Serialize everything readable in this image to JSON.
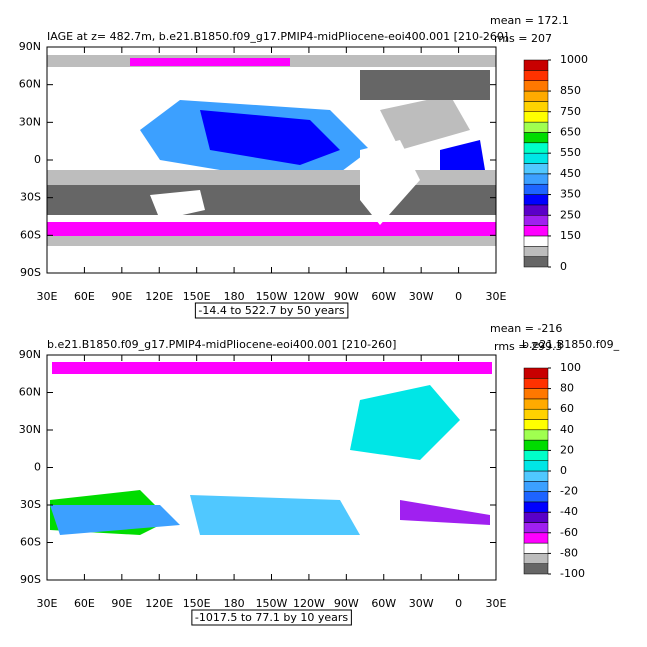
{
  "chart_data": [
    {
      "type": "map",
      "title": "IAGE at z= 482.7m, b.e21.B1850.f09_g17.PMIP4-midPliocene-eoi400.001 [210-260]",
      "mean_label": "mean = 172.1",
      "rms_label": "rms = 207",
      "range_label": "-14.4 to 522.7 by 50 years",
      "xlim": [
        30,
        390
      ],
      "xticks": [
        {
          "value": 30,
          "label": "30E"
        },
        {
          "value": 60,
          "label": "60E"
        },
        {
          "value": 90,
          "label": "90E"
        },
        {
          "value": 120,
          "label": "120E"
        },
        {
          "value": 150,
          "label": "150E"
        },
        {
          "value": 180,
          "label": "180"
        },
        {
          "value": 210,
          "label": "150W"
        },
        {
          "value": 240,
          "label": "120W"
        },
        {
          "value": 270,
          "label": "90W"
        },
        {
          "value": 300,
          "label": "60W"
        },
        {
          "value": 330,
          "label": "30W"
        },
        {
          "value": 360,
          "label": "0"
        },
        {
          "value": 390,
          "label": "30E"
        }
      ],
      "ylim": [
        -90,
        90
      ],
      "yticks": [
        {
          "value": -90,
          "label": "90S"
        },
        {
          "value": -60,
          "label": "60S"
        },
        {
          "value": -30,
          "label": "30S"
        },
        {
          "value": 0,
          "label": "0"
        },
        {
          "value": 30,
          "label": "30N"
        },
        {
          "value": 60,
          "label": "60N"
        },
        {
          "value": 90,
          "label": "90N"
        }
      ],
      "colorbar_lim": [
        0,
        1000
      ],
      "colorbar_ticks": [
        0,
        150,
        250,
        350,
        450,
        550,
        650,
        750,
        850,
        1000
      ],
      "colors": [
        "#666666",
        "#bdbdbd",
        "#ffffff",
        "#ff00ff",
        "#a020f0",
        "#5a00c8",
        "#0000ff",
        "#1e64ff",
        "#3ca0ff",
        "#50c8ff",
        "#00e6e6",
        "#00ffc8",
        "#00dc00",
        "#a0ff50",
        "#ffff00",
        "#ffd200",
        "#ffaa00",
        "#ff7800",
        "#ff3200",
        "#c80000"
      ]
    },
    {
      "type": "map",
      "title": "b.e21.B1850.f09_g17.PMIP4-midPliocene-eoi400.001 [210-260]",
      "mean_label": "mean = -216",
      "rms_label": "rms = 299.3",
      "extra_label": "b.e21.B1850.f09_",
      "range_label": "-1017.5 to 77.1 by 10 years",
      "xlim": [
        30,
        390
      ],
      "xticks": [
        {
          "value": 30,
          "label": "30E"
        },
        {
          "value": 60,
          "label": "60E"
        },
        {
          "value": 90,
          "label": "90E"
        },
        {
          "value": 120,
          "label": "120E"
        },
        {
          "value": 150,
          "label": "150E"
        },
        {
          "value": 180,
          "label": "180"
        },
        {
          "value": 210,
          "label": "150W"
        },
        {
          "value": 240,
          "label": "120W"
        },
        {
          "value": 270,
          "label": "90W"
        },
        {
          "value": 300,
          "label": "60W"
        },
        {
          "value": 330,
          "label": "30W"
        },
        {
          "value": 360,
          "label": "0"
        },
        {
          "value": 390,
          "label": "30E"
        }
      ],
      "ylim": [
        -90,
        90
      ],
      "yticks": [
        {
          "value": -90,
          "label": "90S"
        },
        {
          "value": -60,
          "label": "60S"
        },
        {
          "value": -30,
          "label": "30S"
        },
        {
          "value": 0,
          "label": "0"
        },
        {
          "value": 30,
          "label": "30N"
        },
        {
          "value": 60,
          "label": "60N"
        },
        {
          "value": 90,
          "label": "90N"
        }
      ],
      "colorbar_lim": [
        -100,
        100
      ],
      "colorbar_ticks": [
        -100,
        -80,
        -60,
        -40,
        -20,
        0,
        20,
        40,
        60,
        80,
        100
      ],
      "colors": [
        "#666666",
        "#bdbdbd",
        "#ffffff",
        "#ff00ff",
        "#a020f0",
        "#5a00c8",
        "#0000ff",
        "#1e64ff",
        "#3ca0ff",
        "#50c8ff",
        "#00e6e6",
        "#00ffc8",
        "#00dc00",
        "#a0ff50",
        "#ffff00",
        "#ffd200",
        "#ffaa00",
        "#ff7800",
        "#ff3200",
        "#c80000"
      ]
    }
  ]
}
